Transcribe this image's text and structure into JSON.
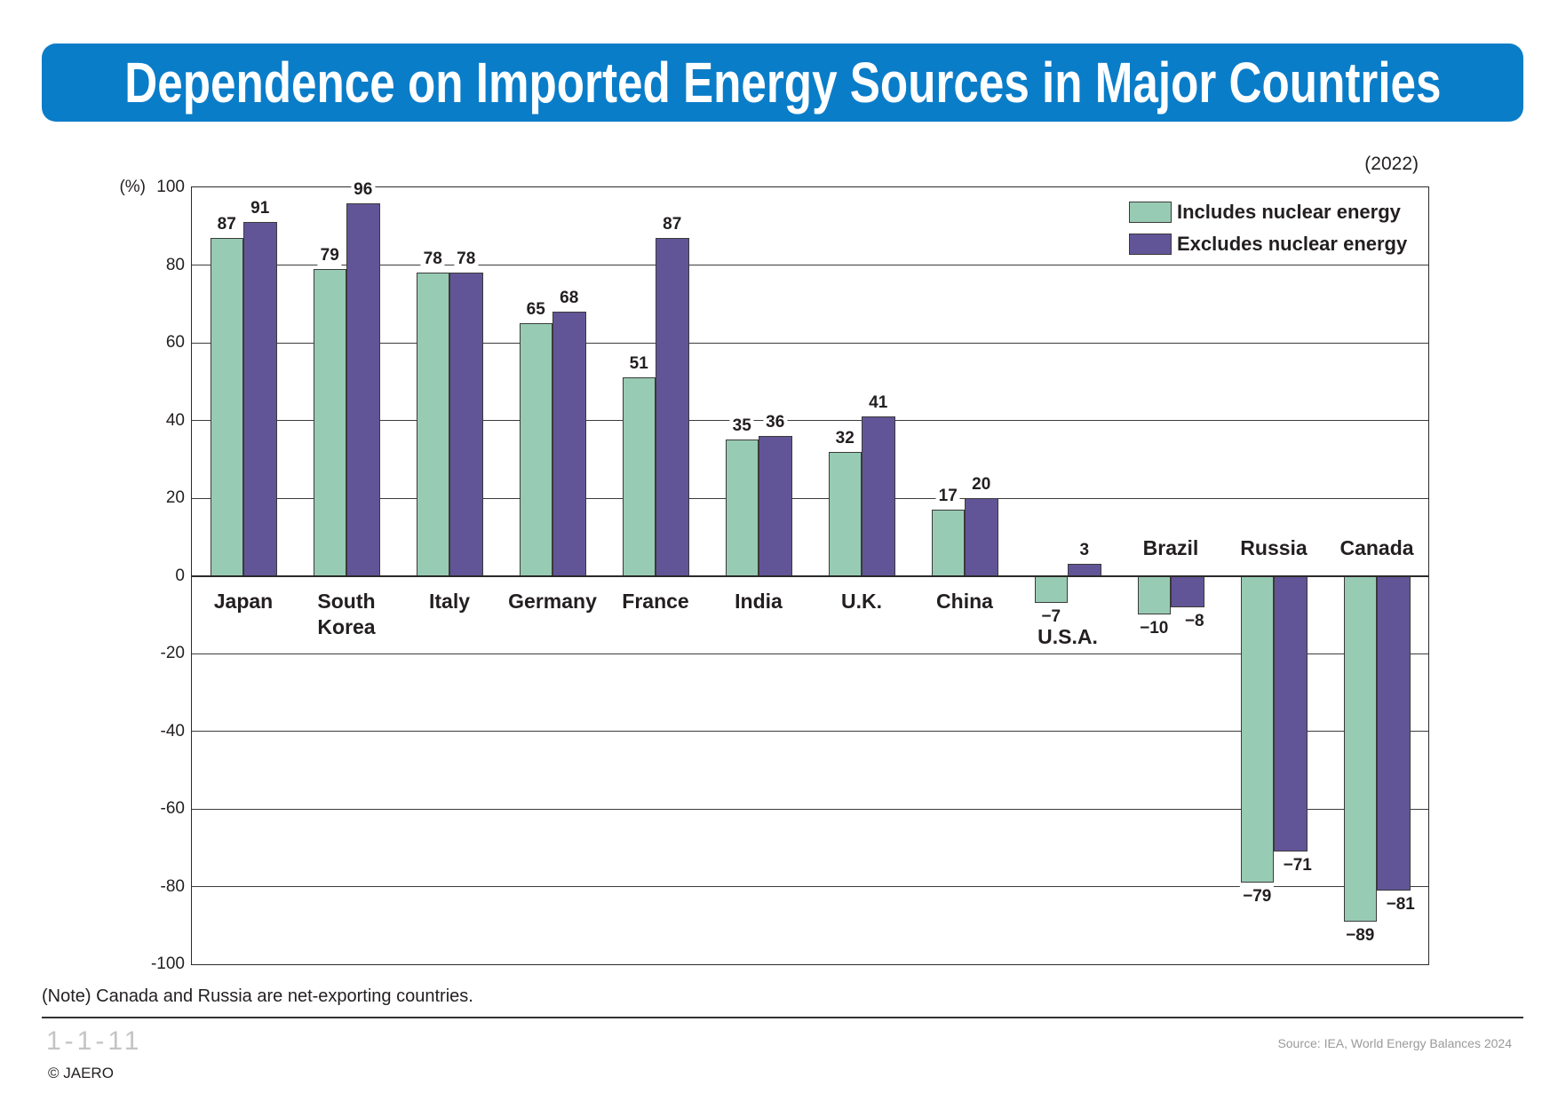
{
  "chart_data": {
    "type": "bar",
    "title": "Dependence on Imported Energy Sources in Major Countries",
    "year": "(2022)",
    "ylabel": "(%)",
    "xlabel": "",
    "ylim": [
      -100,
      100
    ],
    "yticks": [
      100,
      80,
      60,
      40,
      20,
      0,
      -20,
      -40,
      -60,
      -80,
      -100
    ],
    "grid": true,
    "legend_position": "top-right",
    "categories": [
      "Japan",
      "South Korea",
      "Italy",
      "Germany",
      "France",
      "India",
      "U.K.",
      "China",
      "U.S.A.",
      "Brazil",
      "Russia",
      "Canada"
    ],
    "series": [
      {
        "name": "Includes nuclear energy",
        "color": "#98cbb4",
        "values": [
          87,
          79,
          78,
          65,
          51,
          35,
          32,
          17,
          -7,
          -10,
          -79,
          -89
        ],
        "labels": [
          "87",
          "79",
          "78",
          "65",
          "51",
          "35",
          "32",
          "17",
          "−7",
          "−10",
          "−79",
          "−89"
        ]
      },
      {
        "name": "Excludes nuclear energy",
        "color": "#625597",
        "values": [
          91,
          96,
          78,
          68,
          87,
          36,
          41,
          20,
          3,
          -8,
          -71,
          -81
        ],
        "labels": [
          "91",
          "96",
          "78",
          "68",
          "87",
          "36",
          "41",
          "20",
          "3",
          "−8",
          "−71",
          "−81"
        ]
      }
    ]
  },
  "note": "(Note) Canada and Russia are net-exporting countries.",
  "footer": {
    "figure_number": "1-1-11",
    "copyright": "© JAERO",
    "source": "Source: IEA, World Energy Balances 2024"
  },
  "theme": {
    "banner_color": "#0a7dc9"
  }
}
